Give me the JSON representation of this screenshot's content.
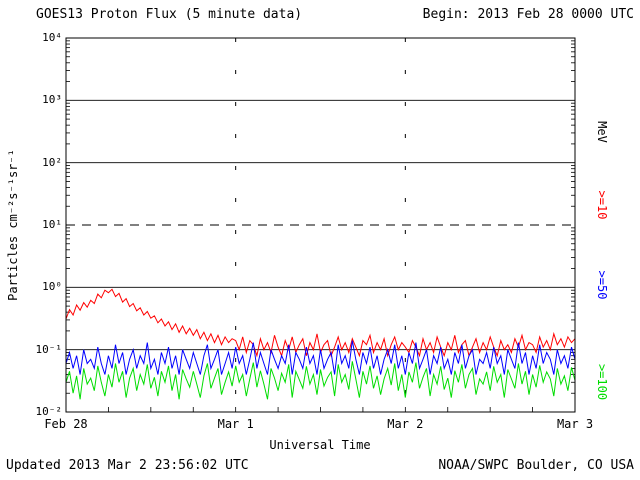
{
  "header": {
    "title": "GOES13 Proton Flux (5 minute data)",
    "begin_label": "Begin: 2013 Feb 28 0000 UTC"
  },
  "footer": {
    "updated": "Updated 2013 Mar  2 23:56:02 UTC",
    "source": "NOAA/SWPC Boulder, CO USA"
  },
  "chart_data": {
    "type": "line",
    "title": "GOES13 Proton Flux (5 minute data)",
    "xlabel": "Universal Time",
    "ylabel": "Particles cm⁻²s⁻¹sr⁻¹",
    "y_scale": "log",
    "ylim": [
      0.01,
      10000
    ],
    "y_tick_labels": [
      "10⁴",
      "10³",
      "10²",
      "10¹",
      "10⁰",
      "10⁻¹",
      "10⁻²"
    ],
    "x_hours_range": [
      0,
      72
    ],
    "x_tick_labels": [
      {
        "hour": 0,
        "label": "Feb 28"
      },
      {
        "hour": 24,
        "label": "Mar 1"
      },
      {
        "hour": 48,
        "label": "Mar 2"
      },
      {
        "hour": 72,
        "label": "Mar 3"
      }
    ],
    "right_axis_labels": [
      {
        "label": "MeV",
        "color": "#000000"
      },
      {
        "label": ">=10",
        "color": "#ff0000"
      },
      {
        "label": ">=50",
        "color": "#0000ff"
      },
      {
        "label": ">=100",
        "color": "#00dd00"
      }
    ],
    "grid": {
      "solid_horizontal_at": [
        1000,
        100,
        1,
        0.1
      ],
      "dashed_horizontal_at": [
        10
      ],
      "dotted_vertical_at_hours": [
        24,
        48
      ]
    },
    "sample_interval_minutes": 30,
    "series": [
      {
        "name": ">=10 MeV",
        "color": "#ff0000",
        "values": [
          0.31,
          0.44,
          0.36,
          0.52,
          0.43,
          0.57,
          0.48,
          0.62,
          0.55,
          0.78,
          0.68,
          0.9,
          0.82,
          0.93,
          0.71,
          0.8,
          0.58,
          0.66,
          0.49,
          0.55,
          0.42,
          0.47,
          0.36,
          0.41,
          0.32,
          0.35,
          0.27,
          0.31,
          0.24,
          0.28,
          0.21,
          0.26,
          0.19,
          0.24,
          0.18,
          0.22,
          0.17,
          0.21,
          0.15,
          0.19,
          0.14,
          0.18,
          0.13,
          0.17,
          0.12,
          0.16,
          0.13,
          0.15,
          0.14,
          0.1,
          0.16,
          0.09,
          0.14,
          0.12,
          0.08,
          0.15,
          0.1,
          0.13,
          0.09,
          0.17,
          0.11,
          0.08,
          0.14,
          0.1,
          0.16,
          0.09,
          0.12,
          0.15,
          0.08,
          0.13,
          0.1,
          0.18,
          0.09,
          0.12,
          0.14,
          0.08,
          0.11,
          0.16,
          0.1,
          0.13,
          0.09,
          0.15,
          0.11,
          0.08,
          0.14,
          0.12,
          0.17,
          0.09,
          0.13,
          0.1,
          0.15,
          0.08,
          0.12,
          0.16,
          0.1,
          0.13,
          0.11,
          0.09,
          0.14,
          0.11,
          0.08,
          0.15,
          0.1,
          0.13,
          0.09,
          0.16,
          0.11,
          0.08,
          0.13,
          0.1,
          0.17,
          0.09,
          0.12,
          0.14,
          0.08,
          0.11,
          0.15,
          0.09,
          0.13,
          0.1,
          0.16,
          0.11,
          0.08,
          0.14,
          0.1,
          0.12,
          0.09,
          0.15,
          0.11,
          0.17,
          0.1,
          0.13,
          0.12,
          0.09,
          0.16,
          0.11,
          0.14,
          0.1,
          0.18,
          0.12,
          0.15,
          0.11,
          0.16,
          0.13,
          0.15
        ]
      },
      {
        "name": ">=50 MeV",
        "color": "#0000ff",
        "values": [
          0.06,
          0.09,
          0.05,
          0.08,
          0.04,
          0.1,
          0.06,
          0.07,
          0.05,
          0.11,
          0.06,
          0.04,
          0.08,
          0.05,
          0.12,
          0.06,
          0.09,
          0.04,
          0.07,
          0.1,
          0.05,
          0.08,
          0.06,
          0.13,
          0.05,
          0.07,
          0.04,
          0.09,
          0.06,
          0.11,
          0.05,
          0.08,
          0.04,
          0.1,
          0.07,
          0.05,
          0.09,
          0.06,
          0.04,
          0.08,
          0.12,
          0.05,
          0.07,
          0.1,
          0.04,
          0.06,
          0.09,
          0.05,
          0.11,
          0.06,
          0.08,
          0.04,
          0.07,
          0.13,
          0.05,
          0.09,
          0.06,
          0.04,
          0.1,
          0.07,
          0.05,
          0.08,
          0.06,
          0.12,
          0.04,
          0.09,
          0.07,
          0.05,
          0.11,
          0.06,
          0.08,
          0.04,
          0.1,
          0.05,
          0.07,
          0.09,
          0.04,
          0.12,
          0.06,
          0.08,
          0.05,
          0.14,
          0.07,
          0.04,
          0.09,
          0.06,
          0.11,
          0.05,
          0.08,
          0.04,
          0.07,
          0.1,
          0.06,
          0.12,
          0.05,
          0.08,
          0.04,
          0.09,
          0.06,
          0.13,
          0.05,
          0.07,
          0.1,
          0.04,
          0.08,
          0.06,
          0.11,
          0.05,
          0.07,
          0.04,
          0.09,
          0.06,
          0.12,
          0.05,
          0.08,
          0.1,
          0.04,
          0.07,
          0.06,
          0.09,
          0.05,
          0.11,
          0.06,
          0.08,
          0.04,
          0.1,
          0.07,
          0.05,
          0.13,
          0.06,
          0.09,
          0.04,
          0.08,
          0.05,
          0.12,
          0.06,
          0.09,
          0.07,
          0.04,
          0.1,
          0.06,
          0.08,
          0.05,
          0.11,
          0.07
        ]
      },
      {
        "name": ">=100 MeV",
        "color": "#00dd00",
        "values": [
          0.03,
          0.045,
          0.02,
          0.038,
          0.016,
          0.05,
          0.028,
          0.035,
          0.022,
          0.055,
          0.03,
          0.018,
          0.04,
          0.025,
          0.06,
          0.03,
          0.045,
          0.017,
          0.035,
          0.05,
          0.022,
          0.04,
          0.028,
          0.058,
          0.024,
          0.036,
          0.018,
          0.045,
          0.03,
          0.055,
          0.022,
          0.04,
          0.016,
          0.048,
          0.034,
          0.025,
          0.045,
          0.028,
          0.017,
          0.038,
          0.06,
          0.024,
          0.035,
          0.05,
          0.019,
          0.03,
          0.044,
          0.026,
          0.055,
          0.03,
          0.04,
          0.018,
          0.034,
          0.062,
          0.025,
          0.046,
          0.028,
          0.016,
          0.05,
          0.035,
          0.022,
          0.042,
          0.03,
          0.058,
          0.017,
          0.045,
          0.033,
          0.024,
          0.054,
          0.028,
          0.04,
          0.019,
          0.048,
          0.026,
          0.036,
          0.044,
          0.018,
          0.058,
          0.03,
          0.04,
          0.023,
          0.065,
          0.034,
          0.017,
          0.045,
          0.028,
          0.055,
          0.024,
          0.038,
          0.019,
          0.034,
          0.05,
          0.027,
          0.06,
          0.022,
          0.04,
          0.017,
          0.044,
          0.03,
          0.062,
          0.024,
          0.036,
          0.05,
          0.018,
          0.04,
          0.028,
          0.054,
          0.023,
          0.035,
          0.017,
          0.046,
          0.03,
          0.058,
          0.024,
          0.04,
          0.05,
          0.019,
          0.034,
          0.028,
          0.044,
          0.022,
          0.054,
          0.03,
          0.04,
          0.017,
          0.048,
          0.034,
          0.024,
          0.06,
          0.028,
          0.045,
          0.019,
          0.04,
          0.025,
          0.056,
          0.03,
          0.044,
          0.034,
          0.018,
          0.05,
          0.028,
          0.038,
          0.022,
          0.052,
          0.032
        ]
      }
    ]
  }
}
